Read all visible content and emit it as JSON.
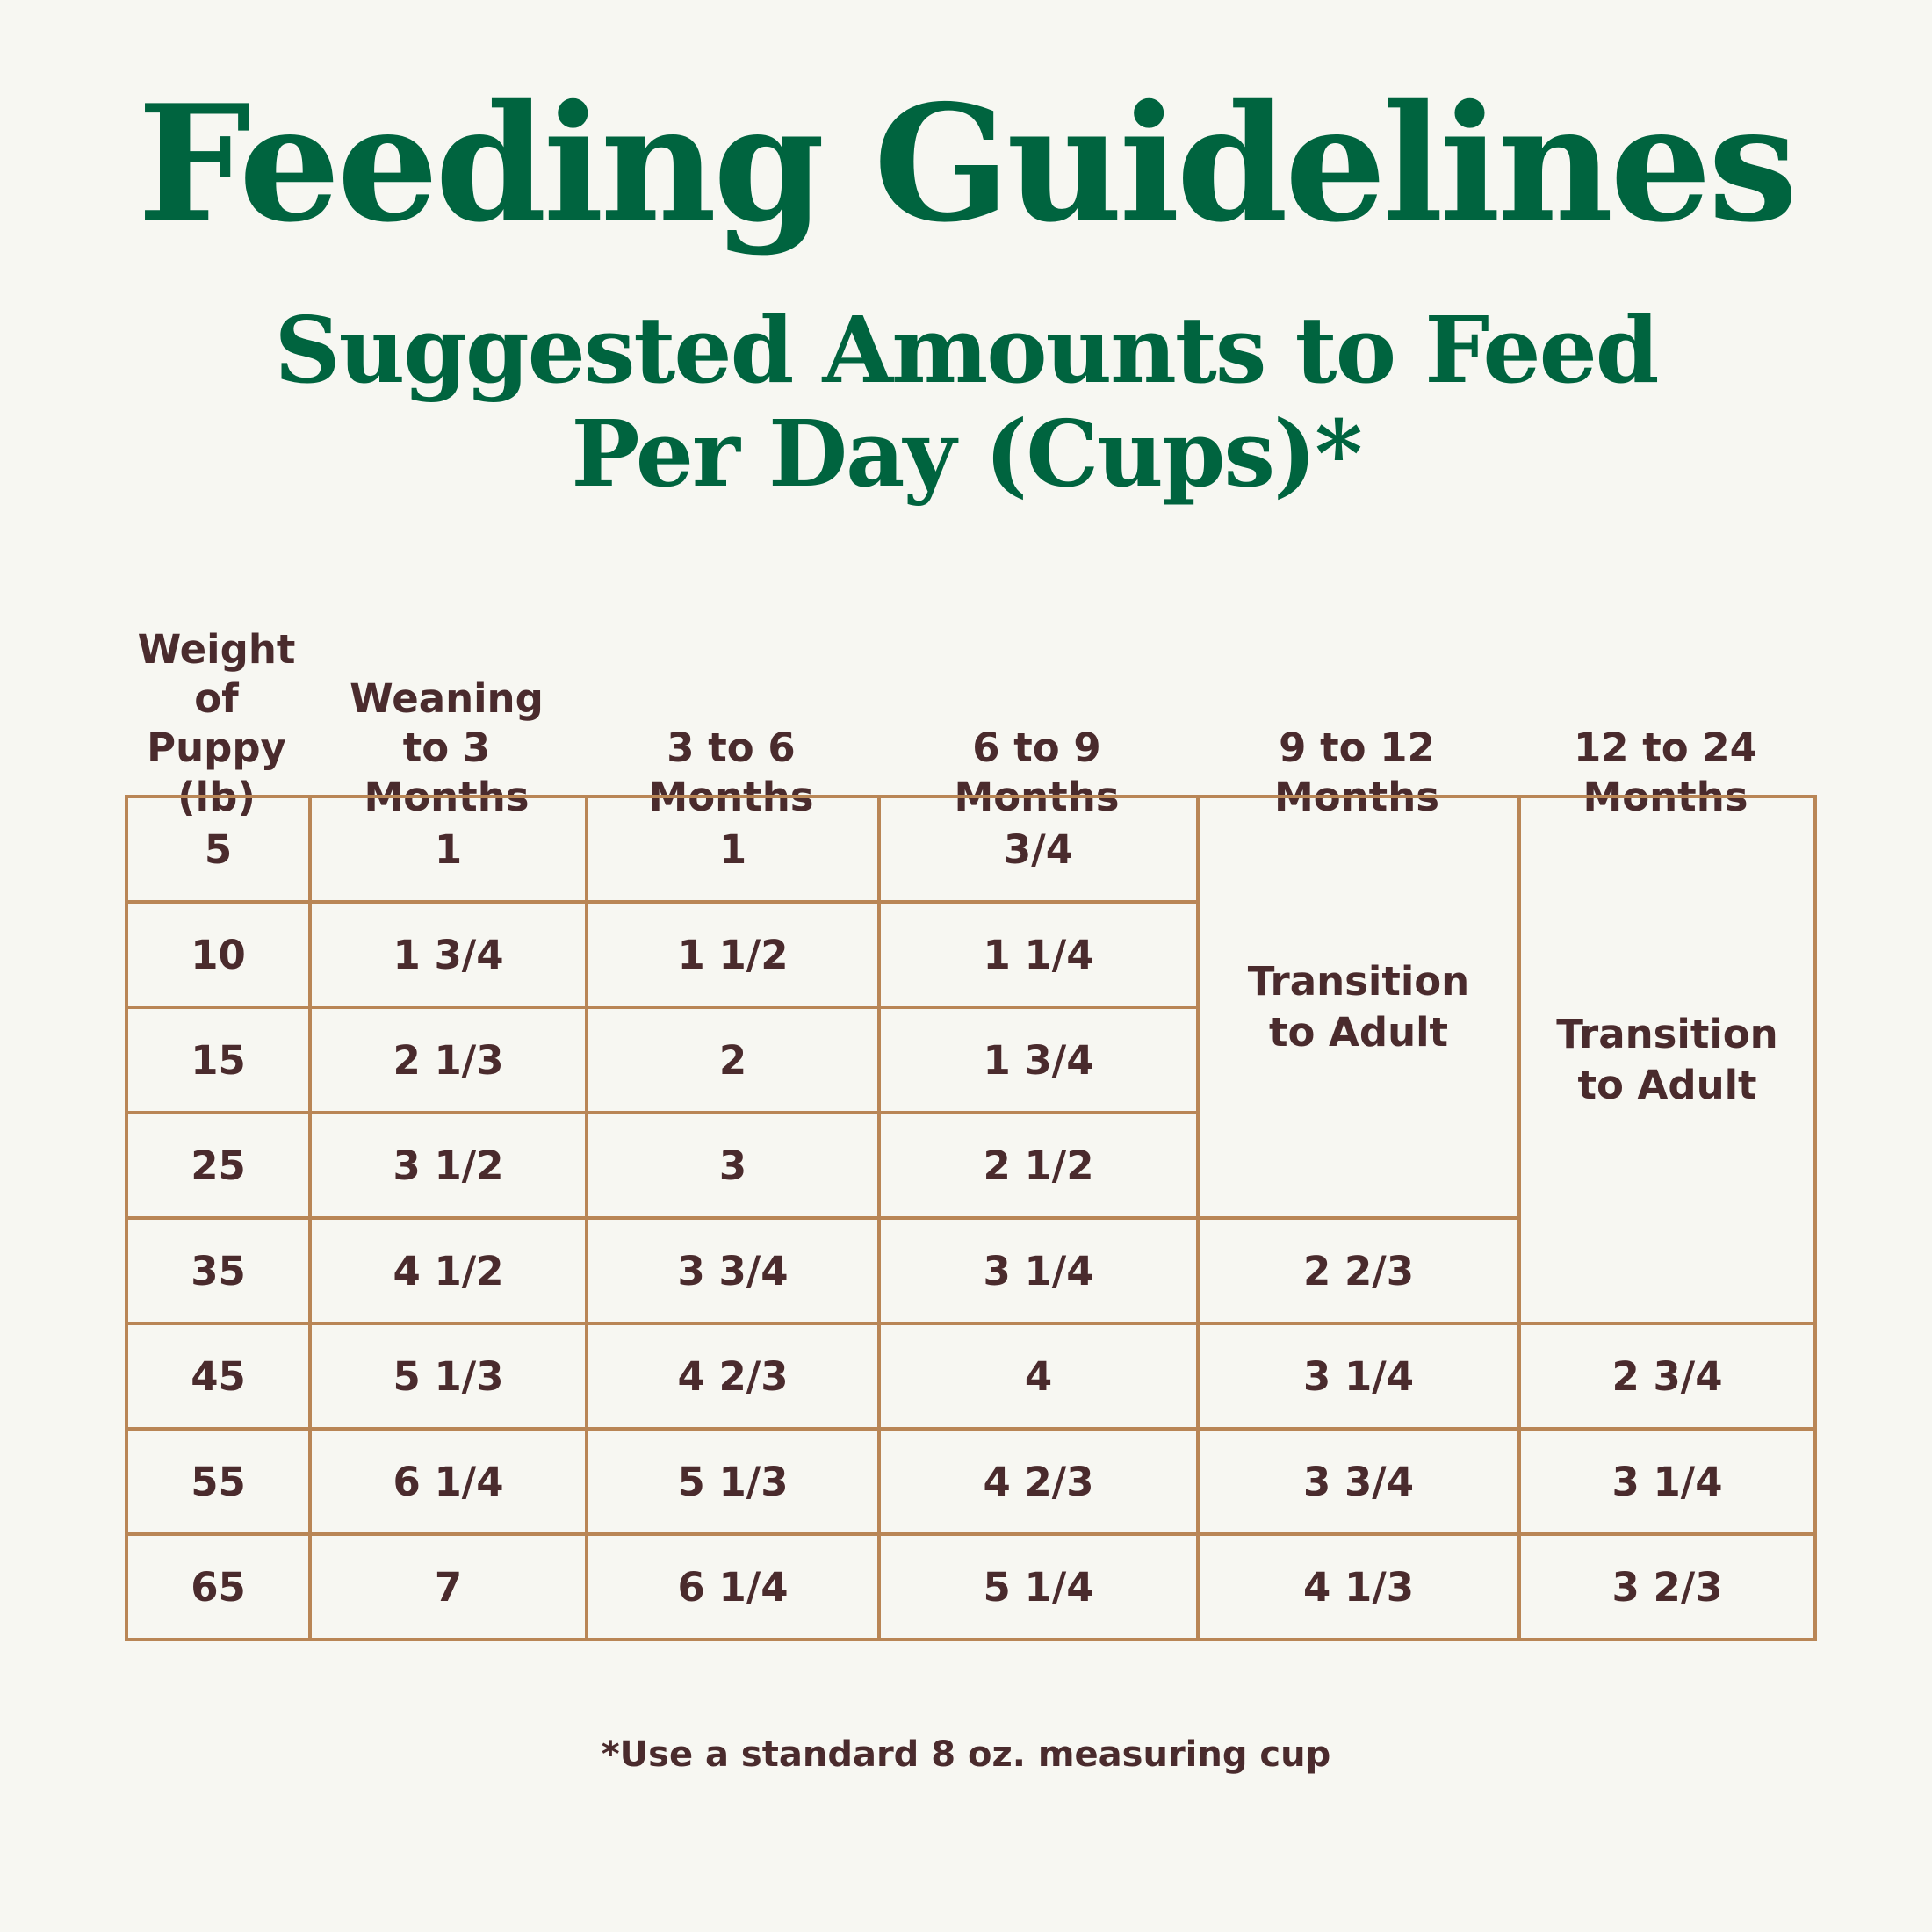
{
  "title": "Feeding Guidelines",
  "subtitle_line1": "Suggested Amounts to Feed",
  "subtitle_line2": "Per Day (Cups)*",
  "colors": {
    "title": "#00643f",
    "text": "#4a2b2d",
    "border": "#b98656",
    "background": "#f7f7f2"
  },
  "table": {
    "headers": [
      "Weight\nof Puppy\n(lb)",
      "Weaning\nto 3\nMonths",
      "3 to 6\nMonths",
      "6 to 9\nMonths",
      "9 to 12\nMonths",
      "12 to 24\nMonths"
    ],
    "rows": [
      [
        "5",
        "1",
        "1",
        "3/4"
      ],
      [
        "10",
        "1 3/4",
        "1 1/2",
        "1 1/4"
      ],
      [
        "15",
        "2 1/3",
        "2",
        "1 3/4"
      ],
      [
        "25",
        "3 1/2",
        "3",
        "2 1/2"
      ],
      [
        "35",
        "4 1/2",
        "3 3/4",
        "3 1/4",
        "2 2/3"
      ],
      [
        "45",
        "5 1/3",
        "4 2/3",
        "4",
        "3 1/4",
        "2 3/4"
      ],
      [
        "55",
        "6 1/4",
        "5 1/3",
        "4 2/3",
        "3 3/4",
        "3 1/4"
      ],
      [
        "65",
        "7",
        "6 1/4",
        "5 1/4",
        "4 1/3",
        "3 2/3"
      ]
    ],
    "transition_9_12": "Transition\nto Adult",
    "transition_12_24": "Transition\nto Adult"
  },
  "footnote": "*Use a standard 8 oz. measuring cup"
}
